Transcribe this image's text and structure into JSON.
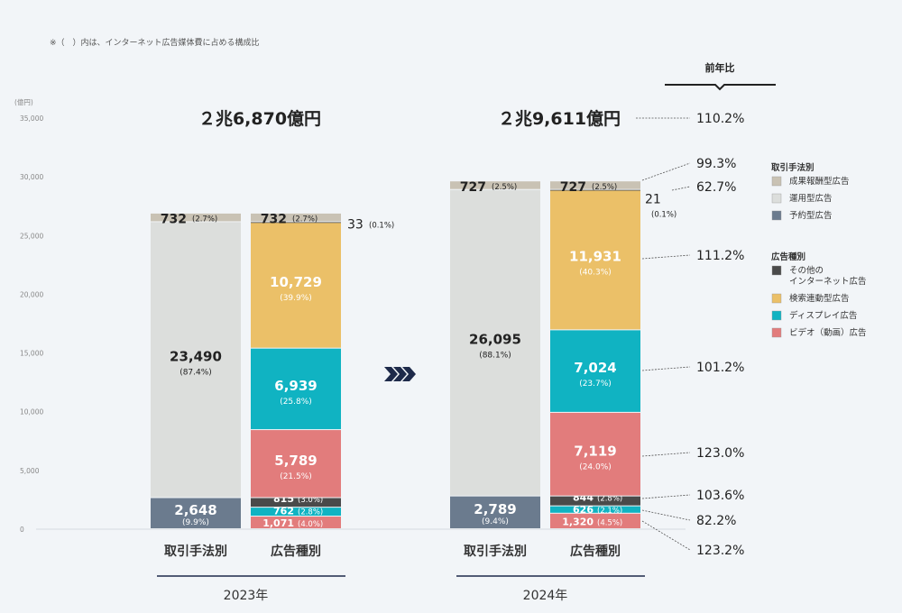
{
  "note": "※（　）内は、インターネット広告媒体費に占める構成比",
  "yoy_header": "前年比",
  "colors": {
    "performance": "#c9c2b4",
    "programmatic": "#dcdedc",
    "reserved": "#6b7b8e",
    "other": "#4a4a4a",
    "search": "#ebc068",
    "display": "#10b3c2",
    "video": "#e27c7c",
    "background": "#f2f5f8"
  },
  "chart_data": {
    "type": "bar",
    "stacked": true,
    "yunit": "(億円)",
    "ylim": [
      0,
      35000
    ],
    "yticks": [
      "0",
      "5,000",
      "10,000",
      "15,000",
      "20,000",
      "25,000",
      "30,000",
      "35,000"
    ],
    "grid": false,
    "legend": {
      "placement": "right",
      "groups": [
        {
          "title": "取引手法別",
          "items": [
            {
              "label": "成果報酬型広告",
              "color": "performance"
            },
            {
              "label": "運用型広告",
              "color": "programmatic"
            },
            {
              "label": "予約型広告",
              "color": "reserved"
            }
          ]
        },
        {
          "title": "広告種別",
          "items": [
            {
              "label": "その他の\nインターネット広告",
              "color": "other"
            },
            {
              "label": "検索連動型広告",
              "color": "search"
            },
            {
              "label": "ディスプレイ広告",
              "color": "display"
            },
            {
              "label": "ビデオ（動画）広告",
              "color": "video"
            }
          ]
        }
      ]
    },
    "years": [
      {
        "year": "2023年",
        "total_label": "２兆6,870億円",
        "bars": [
          {
            "category": "取引手法別",
            "segments": [
              {
                "value": 2648,
                "label": "2,648",
                "pct": "(9.9%)",
                "color": "reserved"
              },
              {
                "value": 23490,
                "label": "23,490",
                "pct": "(87.4%)",
                "color": "programmatic"
              },
              {
                "value": 732,
                "label": "732",
                "pct": "(2.7%)",
                "color": "performance"
              }
            ]
          },
          {
            "category": "広告種別",
            "segments": [
              {
                "value": 1071,
                "label": "1,071",
                "pct": "(4.0%)",
                "color": "video"
              },
              {
                "value": 762,
                "label": "762",
                "pct": "(2.8%)",
                "color": "display"
              },
              {
                "value": 815,
                "label": "815",
                "pct": "(3.0%)",
                "color": "other"
              },
              {
                "value": 5789,
                "label": "5,789",
                "pct": "(21.5%)",
                "color": "video"
              },
              {
                "value": 6939,
                "label": "6,939",
                "pct": "(25.8%)",
                "color": "display"
              },
              {
                "value": 10729,
                "label": "10,729",
                "pct": "(39.9%)",
                "color": "search"
              },
              {
                "value": 33,
                "label": "33",
                "pct": "(0.1%)",
                "color": "other"
              },
              {
                "value": 732,
                "label": "732",
                "pct": "(2.7%)",
                "color": "performance"
              }
            ]
          }
        ]
      },
      {
        "year": "2024年",
        "total_label": "２兆9,611億円",
        "total_yoy": "110.2%",
        "bars": [
          {
            "category": "取引手法別",
            "segments": [
              {
                "value": 2789,
                "label": "2,789",
                "pct": "(9.4%)",
                "color": "reserved"
              },
              {
                "value": 26095,
                "label": "26,095",
                "pct": "(88.1%)",
                "color": "programmatic"
              },
              {
                "value": 727,
                "label": "727",
                "pct": "(2.5%)",
                "color": "performance"
              }
            ]
          },
          {
            "category": "広告種別",
            "segments": [
              {
                "value": 1320,
                "label": "1,320",
                "pct": "(4.5%)",
                "color": "video",
                "yoy": "123.2%"
              },
              {
                "value": 626,
                "label": "626",
                "pct": "(2.1%)",
                "color": "display",
                "yoy": "82.2%"
              },
              {
                "value": 844,
                "label": "844",
                "pct": "(2.8%)",
                "color": "other",
                "yoy": "103.6%"
              },
              {
                "value": 7119,
                "label": "7,119",
                "pct": "(24.0%)",
                "color": "video",
                "yoy": "123.0%"
              },
              {
                "value": 7024,
                "label": "7,024",
                "pct": "(23.7%)",
                "color": "display",
                "yoy": "101.2%"
              },
              {
                "value": 11931,
                "label": "11,931",
                "pct": "(40.3%)",
                "color": "search",
                "yoy": "111.2%"
              },
              {
                "value": 21,
                "label": "21",
                "pct": "(0.1%)",
                "color": "other",
                "yoy": "62.7%"
              },
              {
                "value": 727,
                "label": "727",
                "pct": "(2.5%)",
                "color": "performance",
                "yoy": "99.3%"
              }
            ]
          }
        ]
      }
    ]
  }
}
